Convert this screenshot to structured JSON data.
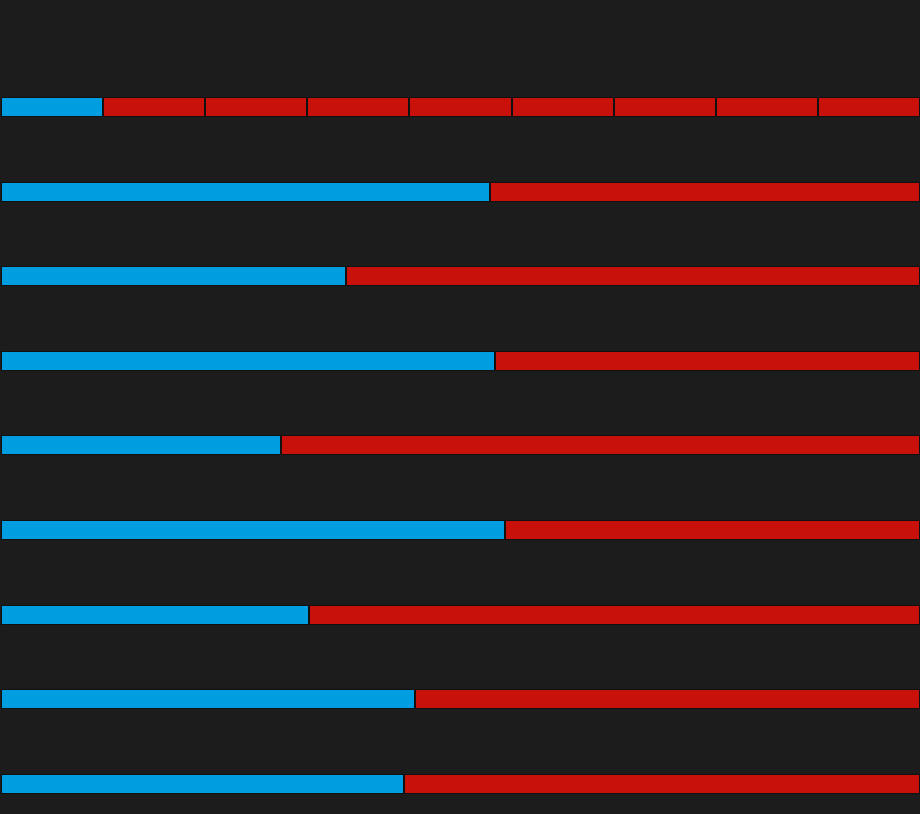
{
  "colors": {
    "background": "#1c1c1c",
    "blue": "#009ee0",
    "red": "#c8110a"
  },
  "bars": [
    {
      "blue_fraction": 0.111,
      "red_segments": 8
    },
    {
      "blue_fraction": 0.532,
      "red_segments": 1
    },
    {
      "blue_fraction": 0.375,
      "red_segments": 1
    },
    {
      "blue_fraction": 0.537,
      "red_segments": 1
    },
    {
      "blue_fraction": 0.305,
      "red_segments": 1
    },
    {
      "blue_fraction": 0.548,
      "red_segments": 1
    },
    {
      "blue_fraction": 0.335,
      "red_segments": 1
    },
    {
      "blue_fraction": 0.451,
      "red_segments": 1
    },
    {
      "blue_fraction": 0.439,
      "red_segments": 1
    }
  ]
}
